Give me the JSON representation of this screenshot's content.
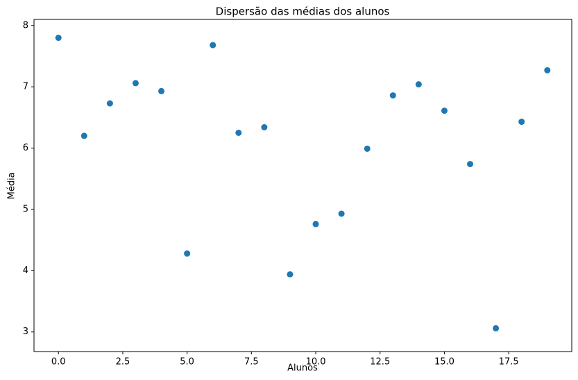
{
  "chart_data": {
    "type": "scatter",
    "title": "Dispersão das médias dos alunos",
    "x_label": "Alunos",
    "y_label": "Média",
    "color": "#1f77b4",
    "x": [
      0,
      1,
      2,
      3,
      4,
      5,
      6,
      7,
      8,
      9,
      10,
      11,
      12,
      13,
      14,
      15,
      16,
      17,
      18,
      19
    ],
    "values": [
      7.8,
      6.2,
      6.73,
      7.06,
      6.93,
      4.28,
      7.68,
      6.25,
      6.34,
      3.94,
      4.76,
      4.93,
      5.99,
      6.86,
      7.04,
      6.61,
      5.74,
      3.06,
      6.43,
      7.27
    ],
    "xlim": [
      -0.95,
      19.95
    ],
    "xticks": [
      {
        "value": 0,
        "label": "0.0"
      },
      {
        "value": 2.5,
        "label": "2.5"
      },
      {
        "value": 5,
        "label": "5.0"
      },
      {
        "value": 7.5,
        "label": "7.5"
      },
      {
        "value": 10,
        "label": "10.0"
      },
      {
        "value": 12.5,
        "label": "12.5"
      },
      {
        "value": 15,
        "label": "15.0"
      },
      {
        "value": 17.5,
        "label": "17.5"
      }
    ],
    "ylim": [
      2.68,
      8.1
    ],
    "yticks": [
      3,
      4,
      5,
      6,
      7,
      8
    ]
  }
}
